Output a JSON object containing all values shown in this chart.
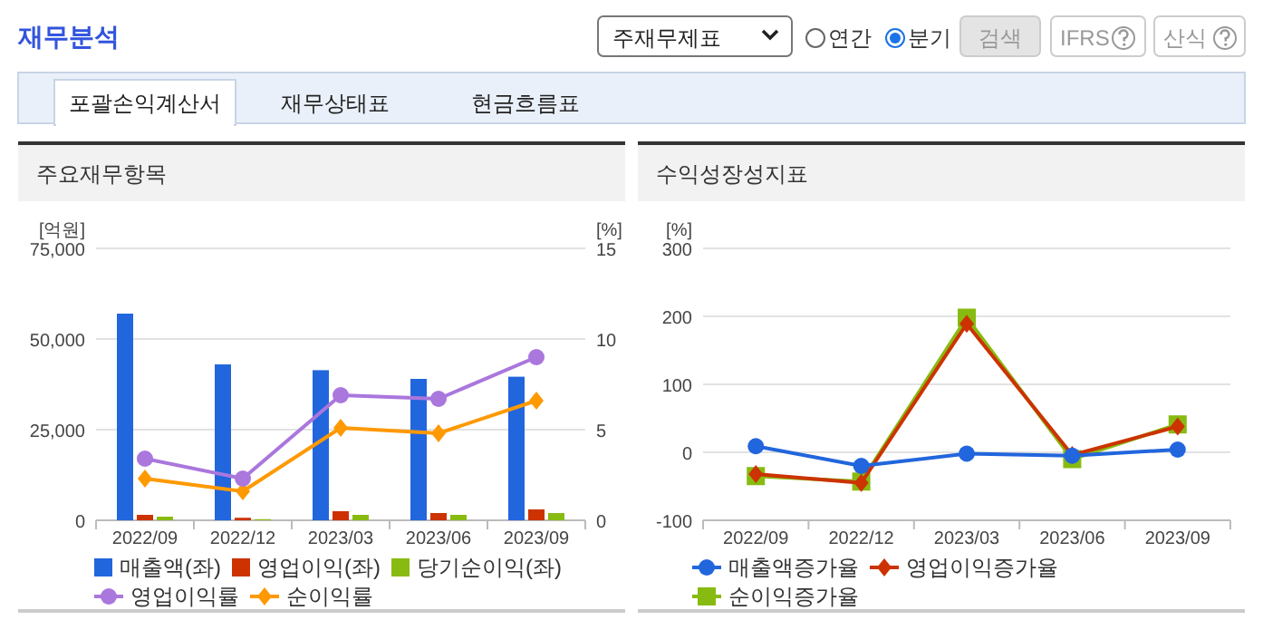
{
  "chart_data": [
    {
      "type": "other",
      "title": "재무분석",
      "annotations": [
        "주재무제표",
        "연간",
        "분기",
        "검색",
        "IFRS",
        "산식",
        "포괄손익계산서",
        "재무상태표",
        "현금흐름표"
      ]
    },
    {
      "type": "bar",
      "title": "주요재무항목",
      "ylabel": "[억원]",
      "y2label": "[%]",
      "categories": [
        "2022/09",
        "2022/12",
        "2023/03",
        "2023/06",
        "2023/09"
      ],
      "ylim": [
        0,
        75000
      ],
      "yticks": [
        0,
        {
          "value": 25000,
          "label": "25,000"
        },
        {
          "value": 50000,
          "label": "50,000"
        },
        {
          "value": 75000,
          "label": "75,000"
        }
      ],
      "y2lim": [
        0,
        15
      ],
      "y2ticks": [
        0,
        5,
        10,
        15
      ],
      "grid": "y",
      "legend": "bottom",
      "series": [
        {
          "name": "매출액(좌)",
          "color": "#2266dd",
          "values": [
            57000,
            43000,
            41400,
            39000,
            39600
          ]
        },
        {
          "name": "영업이익(좌)",
          "color": "#cc3300",
          "values": [
            1500,
            700,
            2500,
            2000,
            3000
          ]
        },
        {
          "name": "당기순이익(좌)",
          "color": "#88bb11",
          "values": [
            1000,
            300,
            1500,
            1500,
            2000
          ]
        },
        {
          "name": "영업이익률",
          "type": "line",
          "axis": "y2",
          "marker": "circle",
          "color": "#aa77dd",
          "values": [
            3.4,
            2.3,
            6.9,
            6.7,
            9.0
          ]
        },
        {
          "name": "순이익률",
          "type": "line",
          "axis": "y2",
          "marker": "diamond",
          "color": "#ff9900",
          "values": [
            2.3,
            1.6,
            5.1,
            4.8,
            6.6
          ]
        }
      ]
    },
    {
      "type": "line",
      "title": "수익성장성지표",
      "ylabel": "[%]",
      "categories": [
        "2022/09",
        "2022/12",
        "2023/03",
        "2023/06",
        "2023/09"
      ],
      "ylim": [
        -100,
        300
      ],
      "yticks": [
        -100,
        0,
        100,
        200,
        300
      ],
      "grid": "y",
      "legend": "bottom",
      "series": [
        {
          "name": "매출액증가율",
          "marker": "circle",
          "color": "#2266dd",
          "values": [
            9,
            -20,
            -2,
            -5,
            4
          ]
        },
        {
          "name": "영업이익증가율",
          "marker": "diamond",
          "color": "#cc3300",
          "values": [
            -32,
            -45,
            189,
            -4,
            38
          ]
        },
        {
          "name": "순이익증가율",
          "marker": "square",
          "color": "#88bb11",
          "values": [
            -35,
            -43,
            198,
            -10,
            41
          ]
        }
      ]
    }
  ]
}
